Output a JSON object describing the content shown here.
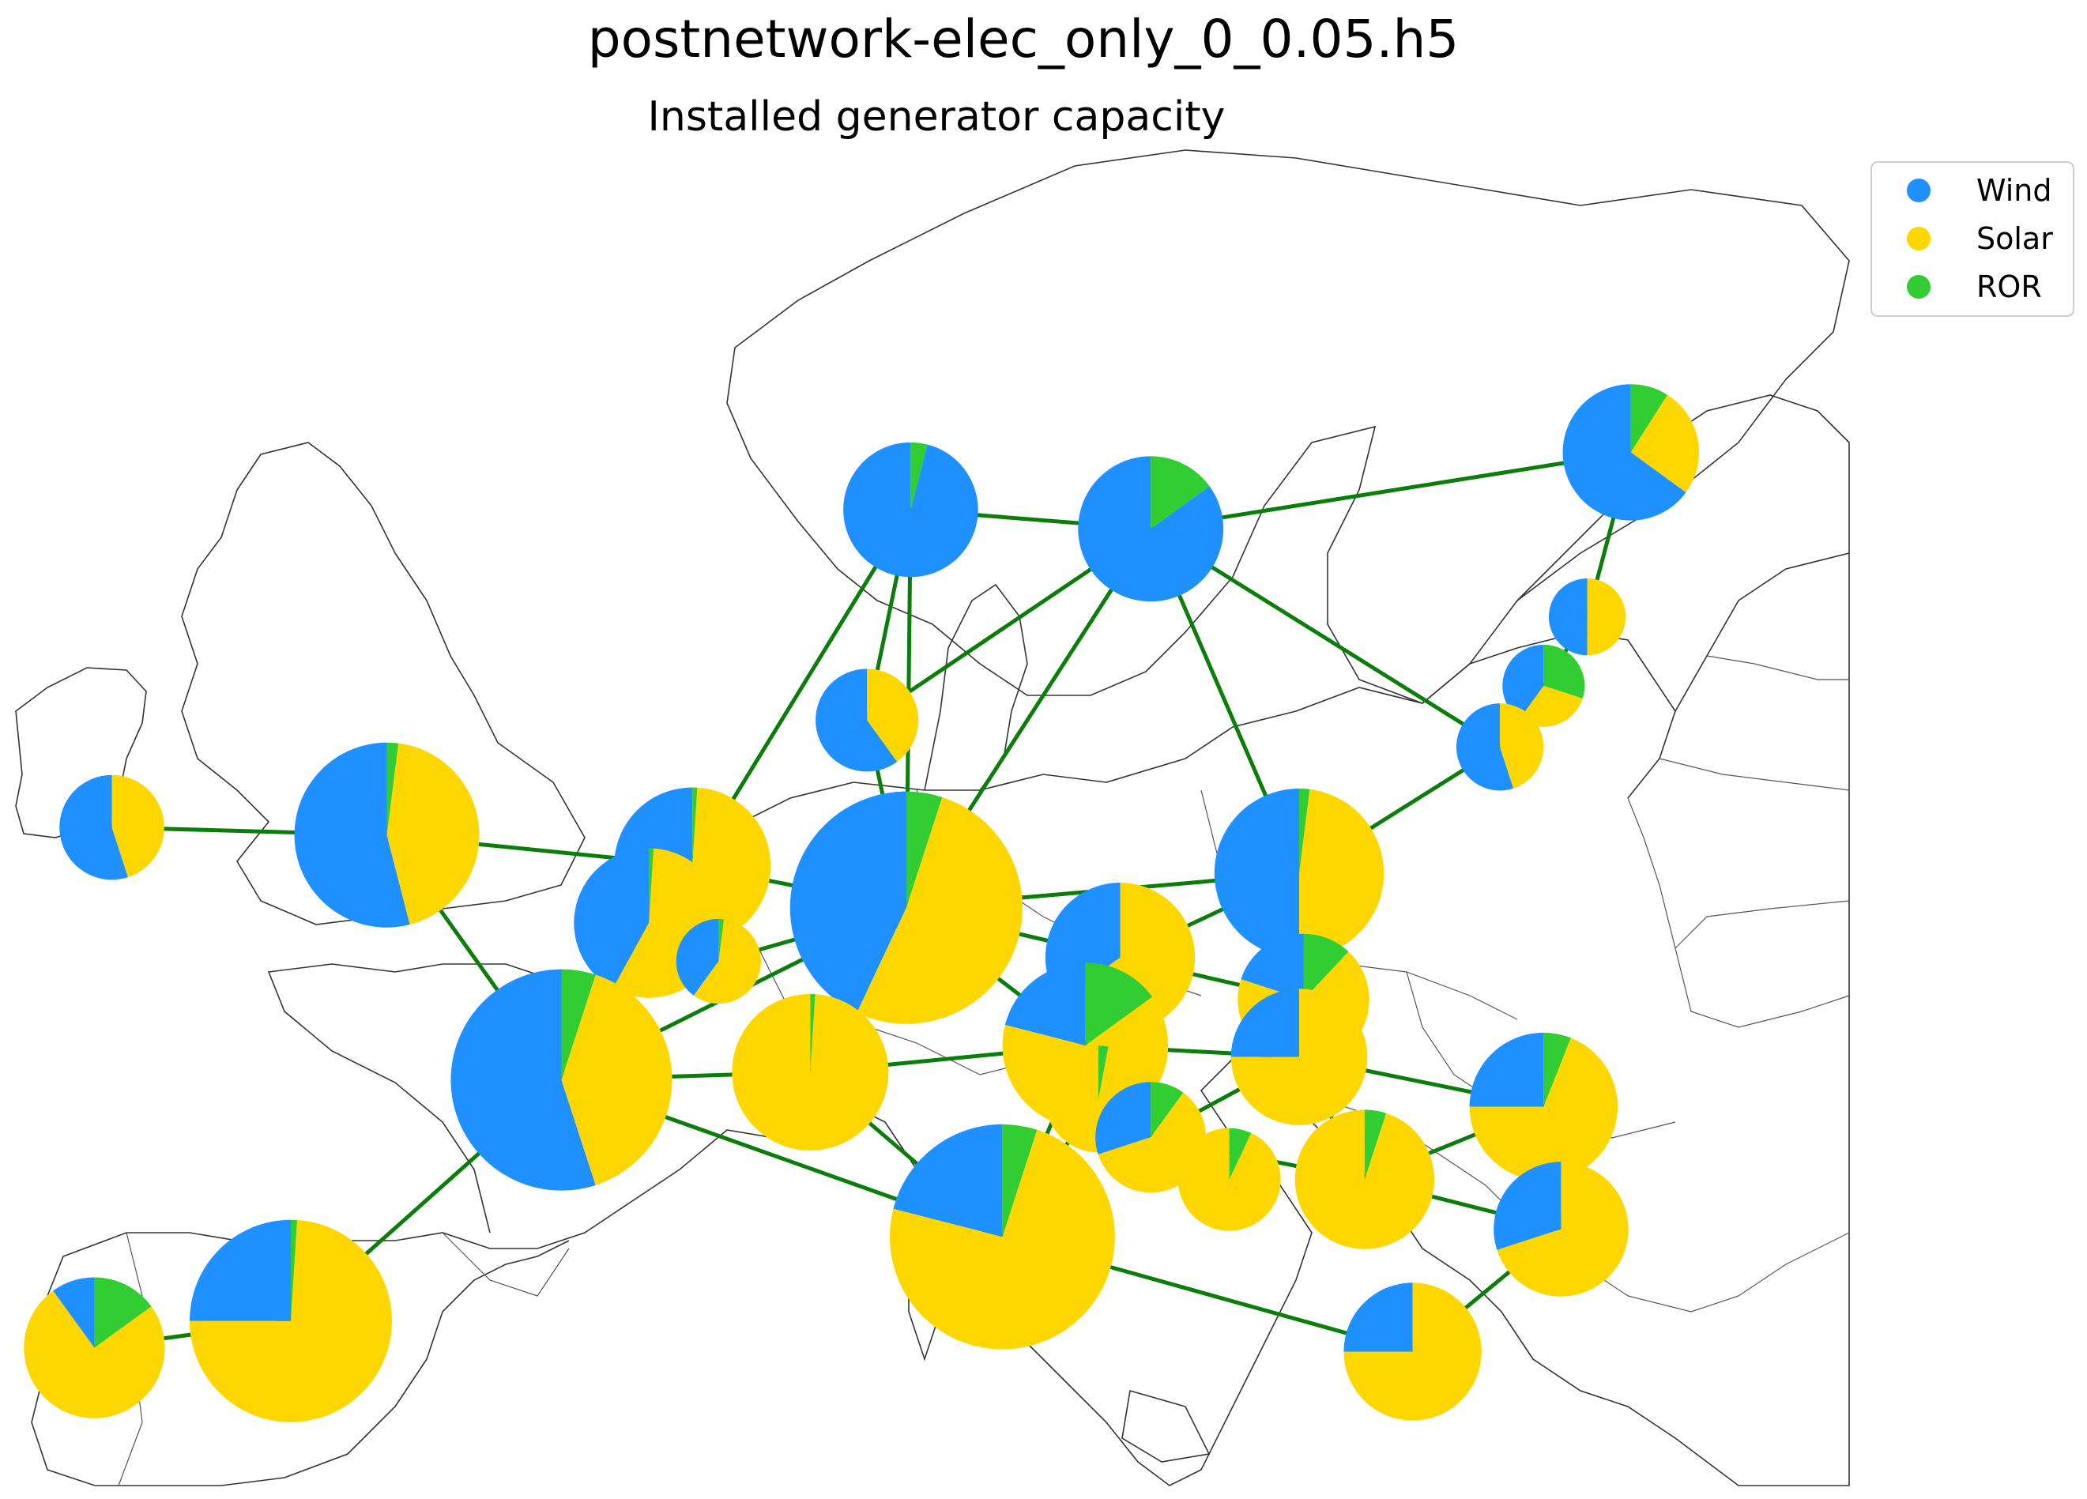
{
  "title": "postnetwork-elec_only_0_0.05.h5",
  "subtitle": "Installed generator capacity",
  "legend": [
    {
      "key": "wind",
      "label": "Wind",
      "color": "#1e90ff"
    },
    {
      "key": "solar",
      "label": "Solar",
      "color": "#ffd700"
    },
    {
      "key": "ror",
      "label": "ROR",
      "color": "#32cd32"
    }
  ],
  "colors": {
    "line": "#0a7d0a",
    "coast": "#333333",
    "border": "#555555"
  },
  "chart_data": {
    "type": "map-pie",
    "series_order": [
      "wind",
      "solar",
      "ror"
    ],
    "nodes": [
      {
        "id": "NO",
        "lon": 10.5,
        "lat": 61.5,
        "wind": 0.96,
        "solar": 0.0,
        "ror": 0.04,
        "size": 0.43
      },
      {
        "id": "SE",
        "lon": 16.0,
        "lat": 61.0,
        "wind": 0.85,
        "solar": 0.0,
        "ror": 0.15,
        "size": 0.5
      },
      {
        "id": "FI",
        "lon": 27.0,
        "lat": 63.0,
        "wind": 0.65,
        "solar": 0.26,
        "ror": 0.09,
        "size": 0.44
      },
      {
        "id": "EE",
        "lon": 26.0,
        "lat": 58.7,
        "wind": 0.5,
        "solar": 0.5,
        "ror": 0.0,
        "size": 0.14
      },
      {
        "id": "LV",
        "lon": 25.0,
        "lat": 56.9,
        "wind": 0.4,
        "solar": 0.3,
        "ror": 0.3,
        "size": 0.16
      },
      {
        "id": "LT",
        "lon": 24.0,
        "lat": 55.3,
        "wind": 0.55,
        "solar": 0.45,
        "ror": 0.0,
        "size": 0.18
      },
      {
        "id": "DK",
        "lon": 9.5,
        "lat": 56.0,
        "wind": 0.6,
        "solar": 0.4,
        "ror": 0.0,
        "size": 0.25
      },
      {
        "id": "IE",
        "lon": -7.8,
        "lat": 53.2,
        "wind": 0.55,
        "solar": 0.45,
        "ror": 0.0,
        "size": 0.26
      },
      {
        "id": "GB",
        "lon": -1.5,
        "lat": 53.0,
        "wind": 0.54,
        "solar": 0.44,
        "ror": 0.02,
        "size": 0.81
      },
      {
        "id": "NL",
        "lon": 5.5,
        "lat": 52.2,
        "wind": 0.48,
        "solar": 0.51,
        "ror": 0.01,
        "size": 0.58
      },
      {
        "id": "BE",
        "lon": 4.5,
        "lat": 50.7,
        "wind": 0.42,
        "solar": 0.57,
        "ror": 0.01,
        "size": 0.53
      },
      {
        "id": "LU",
        "lon": 6.1,
        "lat": 49.7,
        "wind": 0.4,
        "solar": 0.58,
        "ror": 0.02,
        "size": 0.17
      },
      {
        "id": "DE",
        "lon": 10.4,
        "lat": 51.1,
        "wind": 0.43,
        "solar": 0.52,
        "ror": 0.05,
        "size": 1.28
      },
      {
        "id": "PL",
        "lon": 19.4,
        "lat": 52.0,
        "wind": 0.5,
        "solar": 0.48,
        "ror": 0.02,
        "size": 0.68
      },
      {
        "id": "CZ",
        "lon": 15.3,
        "lat": 49.8,
        "wind": 0.35,
        "solar": 0.65,
        "ror": 0.0,
        "size": 0.53
      },
      {
        "id": "SK",
        "lon": 19.5,
        "lat": 48.7,
        "wind": 0.2,
        "solar": 0.68,
        "ror": 0.12,
        "size": 0.41
      },
      {
        "id": "AT",
        "lon": 14.5,
        "lat": 47.5,
        "wind": 0.21,
        "solar": 0.64,
        "ror": 0.15,
        "size": 0.65
      },
      {
        "id": "HU",
        "lon": 19.4,
        "lat": 47.2,
        "wind": 0.25,
        "solar": 0.75,
        "ror": 0.0,
        "size": 0.44
      },
      {
        "id": "SI",
        "lon": 14.8,
        "lat": 46.1,
        "wind": 0.0,
        "solar": 0.97,
        "ror": 0.03,
        "size": 0.27
      },
      {
        "id": "CH",
        "lon": 8.2,
        "lat": 46.8,
        "wind": 0.0,
        "solar": 0.99,
        "ror": 0.01,
        "size": 0.58
      },
      {
        "id": "FR",
        "lon": 2.5,
        "lat": 46.6,
        "wind": 0.55,
        "solar": 0.4,
        "ror": 0.05,
        "size": 1.16
      },
      {
        "id": "HR",
        "lon": 16.0,
        "lat": 45.1,
        "wind": 0.3,
        "solar": 0.6,
        "ror": 0.1,
        "size": 0.29
      },
      {
        "id": "BA",
        "lon": 17.8,
        "lat": 44.0,
        "wind": 0.0,
        "solar": 0.93,
        "ror": 0.07,
        "size": 0.25
      },
      {
        "id": "RS",
        "lon": 20.9,
        "lat": 44.0,
        "wind": 0.0,
        "solar": 0.95,
        "ror": 0.05,
        "size": 0.46
      },
      {
        "id": "RO",
        "lon": 25.0,
        "lat": 45.9,
        "wind": 0.25,
        "solar": 0.69,
        "ror": 0.06,
        "size": 0.52
      },
      {
        "id": "BG",
        "lon": 25.4,
        "lat": 42.7,
        "wind": 0.3,
        "solar": 0.7,
        "ror": 0.0,
        "size": 0.43
      },
      {
        "id": "IT",
        "lon": 12.6,
        "lat": 42.5,
        "wind": 0.21,
        "solar": 0.74,
        "ror": 0.05,
        "size": 1.2
      },
      {
        "id": "GR",
        "lon": 22.0,
        "lat": 39.5,
        "wind": 0.25,
        "solar": 0.75,
        "ror": 0.0,
        "size": 0.45
      },
      {
        "id": "ES",
        "lon": -3.7,
        "lat": 40.3,
        "wind": 0.25,
        "solar": 0.74,
        "ror": 0.01,
        "size": 0.97
      },
      {
        "id": "PT",
        "lon": -8.2,
        "lat": 39.6,
        "wind": 0.1,
        "solar": 0.75,
        "ror": 0.15,
        "size": 0.47
      }
    ],
    "lines": [
      [
        "NO",
        "SE"
      ],
      [
        "SE",
        "FI"
      ],
      [
        "FI",
        "EE"
      ],
      [
        "EE",
        "LV"
      ],
      [
        "LV",
        "LT"
      ],
      [
        "LT",
        "PL"
      ],
      [
        "LT",
        "SE"
      ],
      [
        "NO",
        "DK"
      ],
      [
        "NO",
        "NL"
      ],
      [
        "NO",
        "DE"
      ],
      [
        "SE",
        "DK"
      ],
      [
        "SE",
        "DE"
      ],
      [
        "SE",
        "PL"
      ],
      [
        "DK",
        "DE"
      ],
      [
        "IE",
        "GB"
      ],
      [
        "GB",
        "NL"
      ],
      [
        "GB",
        "FR"
      ],
      [
        "NL",
        "BE"
      ],
      [
        "NL",
        "DE"
      ],
      [
        "BE",
        "FR"
      ],
      [
        "BE",
        "LU"
      ],
      [
        "LU",
        "DE"
      ],
      [
        "FR",
        "DE"
      ],
      [
        "FR",
        "CH"
      ],
      [
        "FR",
        "IT"
      ],
      [
        "FR",
        "ES"
      ],
      [
        "ES",
        "PT"
      ],
      [
        "DE",
        "CH"
      ],
      [
        "DE",
        "CZ"
      ],
      [
        "DE",
        "AT"
      ],
      [
        "DE",
        "PL"
      ],
      [
        "PL",
        "CZ"
      ],
      [
        "PL",
        "SK"
      ],
      [
        "CZ",
        "AT"
      ],
      [
        "CZ",
        "SK"
      ],
      [
        "SK",
        "HU"
      ],
      [
        "AT",
        "HU"
      ],
      [
        "AT",
        "CH"
      ],
      [
        "AT",
        "SI"
      ],
      [
        "AT",
        "IT"
      ],
      [
        "CH",
        "IT"
      ],
      [
        "IT",
        "SI"
      ],
      [
        "SI",
        "HR"
      ],
      [
        "HR",
        "HU"
      ],
      [
        "HR",
        "BA"
      ],
      [
        "HR",
        "RS"
      ],
      [
        "HU",
        "RS"
      ],
      [
        "HU",
        "RO"
      ],
      [
        "RS",
        "RO"
      ],
      [
        "RS",
        "BG"
      ],
      [
        "RO",
        "BG"
      ],
      [
        "BG",
        "GR"
      ],
      [
        "IT",
        "GR"
      ]
    ]
  }
}
